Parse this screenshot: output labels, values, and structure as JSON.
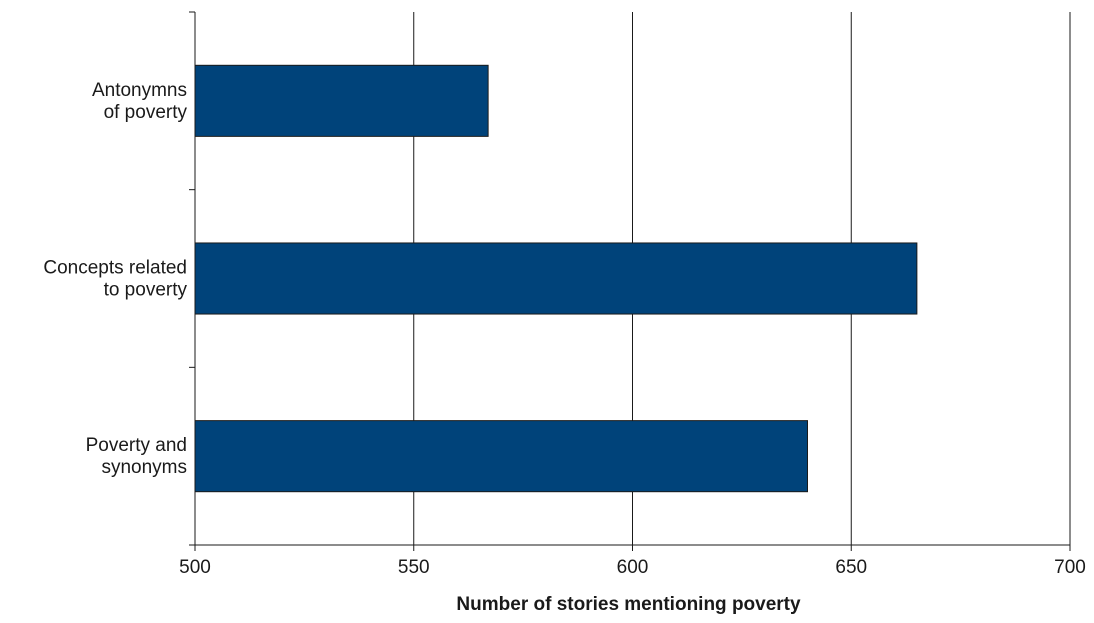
{
  "chart_data": {
    "type": "bar",
    "orientation": "horizontal",
    "categories": [
      "Antonymns\nof poverty",
      "Concepts related\nto poverty",
      "Poverty and\nsynonyms"
    ],
    "values": [
      567,
      665,
      640
    ],
    "xlabel": "Number of stories mentioning poverty",
    "ylabel": "",
    "xlim": [
      500,
      700
    ],
    "xticks": [
      500,
      550,
      600,
      650,
      700
    ],
    "xtick_labels": [
      "500",
      "550",
      "600",
      "650",
      "700"
    ],
    "grid": "vertical",
    "colors": {
      "bar": "#00437a",
      "axis": "#1a1a1a"
    }
  }
}
